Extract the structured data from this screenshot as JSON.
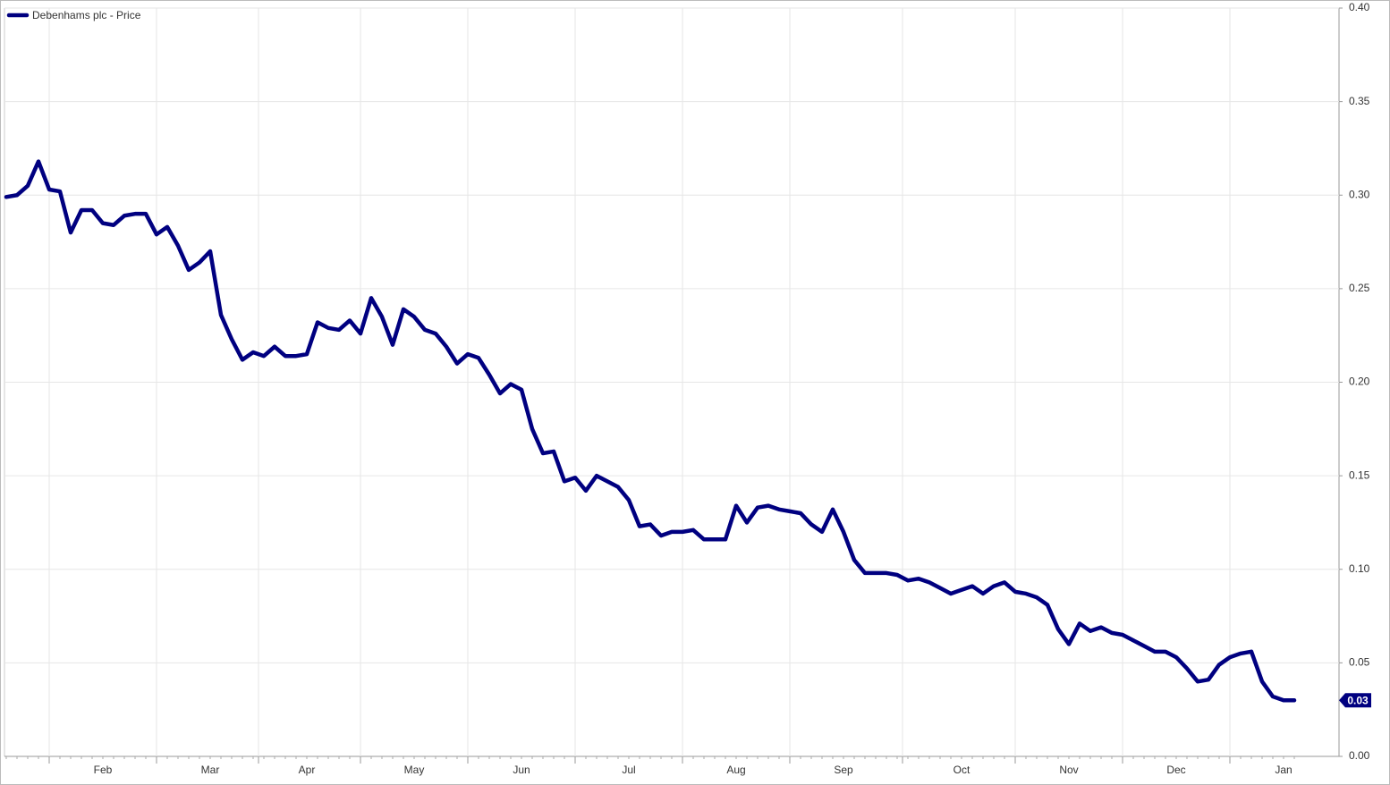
{
  "chart_data": {
    "type": "line",
    "categories": [
      null,
      null,
      null,
      null,
      null,
      null,
      null,
      null,
      null,
      "Feb",
      null,
      null,
      null,
      null,
      null,
      null,
      null,
      null,
      null,
      "Mar",
      null,
      null,
      null,
      null,
      null,
      null,
      null,
      null,
      "Apr",
      null,
      null,
      null,
      null,
      null,
      null,
      null,
      null,
      null,
      "May",
      null,
      null,
      null,
      null,
      null,
      null,
      null,
      null,
      null,
      "Jun",
      null,
      null,
      null,
      null,
      null,
      null,
      null,
      null,
      null,
      "Jul",
      null,
      null,
      null,
      null,
      null,
      null,
      null,
      null,
      null,
      "Aug",
      null,
      null,
      null,
      null,
      null,
      null,
      null,
      null,
      null,
      "Sep",
      null,
      null,
      null,
      null,
      null,
      null,
      null,
      null,
      null,
      null,
      "Oct",
      null,
      null,
      null,
      null,
      null,
      null,
      null,
      null,
      null,
      "Nov",
      null,
      null,
      null,
      null,
      null,
      null,
      null,
      null,
      null,
      "Dec",
      null,
      null,
      null,
      null,
      null,
      null,
      null,
      null,
      null,
      "Jan",
      null
    ],
    "series": [
      {
        "name": "Debenhams plc - Price",
        "color": "#000080",
        "values": [
          0.299,
          0.3,
          0.305,
          0.318,
          0.303,
          0.302,
          0.28,
          0.292,
          0.292,
          0.285,
          0.284,
          0.289,
          0.29,
          0.29,
          0.279,
          0.283,
          0.273,
          0.26,
          0.264,
          0.27,
          0.236,
          0.223,
          0.212,
          0.216,
          0.214,
          0.219,
          0.214,
          0.214,
          0.215,
          0.232,
          0.229,
          0.228,
          0.233,
          0.226,
          0.245,
          0.235,
          0.22,
          0.239,
          0.235,
          0.228,
          0.226,
          0.219,
          0.21,
          0.215,
          0.213,
          0.204,
          0.194,
          0.199,
          0.196,
          0.175,
          0.162,
          0.163,
          0.147,
          0.149,
          0.142,
          0.15,
          0.147,
          0.144,
          0.137,
          0.123,
          0.124,
          0.118,
          0.12,
          0.12,
          0.121,
          0.116,
          0.116,
          0.116,
          0.134,
          0.125,
          0.133,
          0.134,
          0.132,
          0.131,
          0.13,
          0.124,
          0.12,
          0.132,
          0.12,
          0.105,
          0.098,
          0.098,
          0.098,
          0.097,
          0.094,
          0.095,
          0.093,
          0.09,
          0.087,
          0.089,
          0.091,
          0.087,
          0.091,
          0.093,
          0.088,
          0.087,
          0.085,
          0.081,
          0.068,
          0.06,
          0.071,
          0.067,
          0.069,
          0.066,
          0.065,
          0.062,
          0.059,
          0.056,
          0.056,
          0.053,
          0.047,
          0.04,
          0.041,
          0.049,
          0.053,
          0.055,
          0.056,
          0.04,
          0.032,
          0.03,
          0.03
        ]
      }
    ],
    "ylim": [
      0,
      0.4
    ],
    "yticks": [
      {
        "value": 0,
        "label": "0.00"
      },
      0.05,
      {
        "value": 0.1,
        "label": "0.10"
      },
      0.15,
      {
        "value": 0.2,
        "label": "0.20"
      },
      0.25,
      {
        "value": 0.3,
        "label": "0.30"
      },
      0.35,
      {
        "value": 0.4,
        "label": "0.40"
      }
    ],
    "grid": true,
    "legend": "top-left"
  }
}
